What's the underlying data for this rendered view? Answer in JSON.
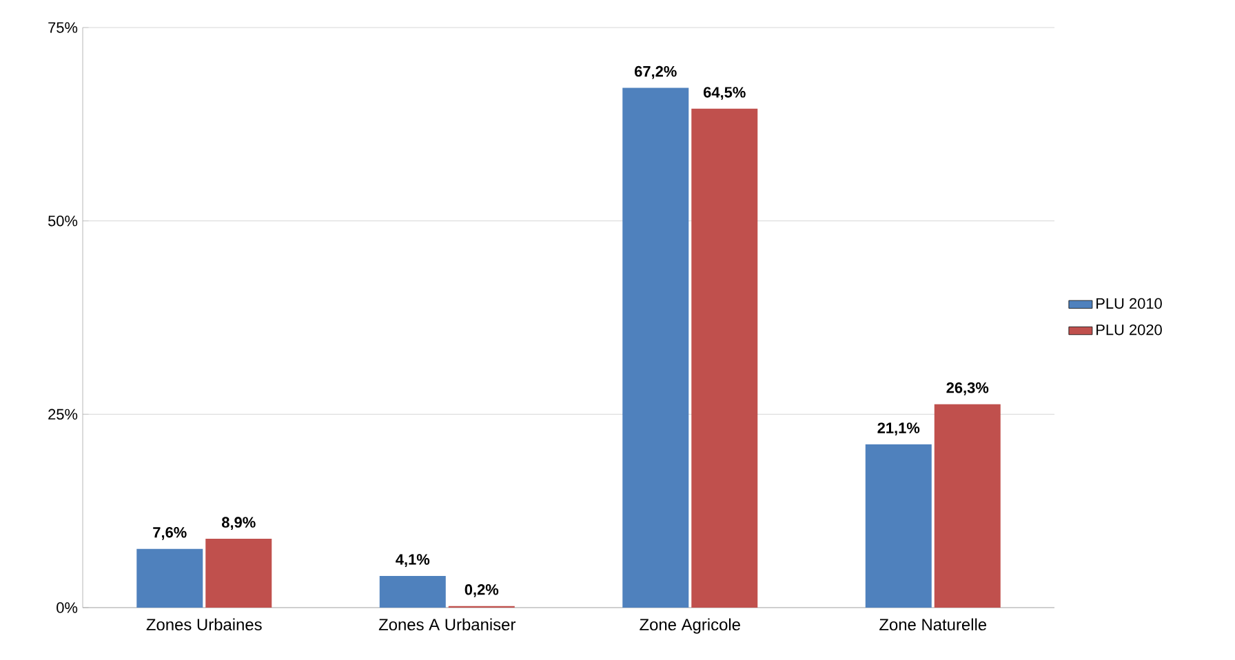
{
  "chart_data": {
    "type": "bar",
    "categories": [
      "Zones Urbaines",
      "Zones A Urbaniser",
      "Zone Agricole",
      "Zone Naturelle"
    ],
    "series": [
      {
        "name": "PLU 2010",
        "color": "#4f81bd",
        "values": [
          7.6,
          4.1,
          67.2,
          21.1
        ],
        "value_labels": [
          "7,6%",
          "4,1%",
          "67,2%",
          "21,1%"
        ]
      },
      {
        "name": "PLU 2020",
        "color": "#c0504d",
        "values": [
          8.9,
          0.2,
          64.5,
          26.3
        ],
        "value_labels": [
          "8,9%",
          "0,2%",
          "64,5%",
          "26,3%"
        ]
      }
    ],
    "ylim": [
      0,
      75
    ],
    "yticks": [
      {
        "value": 0,
        "label": "0%"
      },
      {
        "value": 25,
        "label": "25%"
      },
      {
        "value": 50,
        "label": "50%"
      },
      {
        "value": 75,
        "label": "75%"
      }
    ],
    "grid": "y",
    "legend": "right"
  }
}
